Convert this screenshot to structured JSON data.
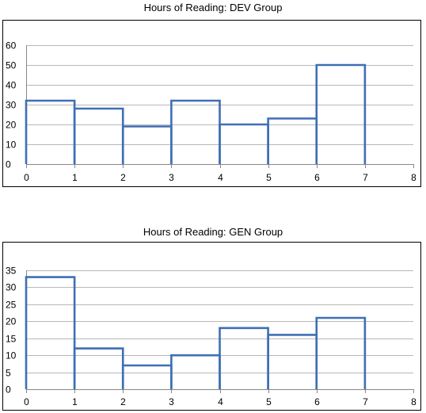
{
  "chart_data": [
    {
      "type": "histogram",
      "title": "Hours of Reading:  DEV Group",
      "xlabel": "",
      "ylabel": "",
      "bin_edges": [
        0,
        1,
        2,
        3,
        4,
        5,
        6,
        7
      ],
      "values": [
        32,
        28,
        19,
        32,
        20,
        23,
        50
      ],
      "xlim": [
        0,
        8
      ],
      "ylim": [
        0,
        60
      ],
      "xticks": [
        0,
        1,
        2,
        3,
        4,
        5,
        6,
        7,
        8
      ],
      "yticks": [
        0,
        10,
        20,
        30,
        40,
        50,
        60
      ],
      "grid": true,
      "color": "#3f6fb5"
    },
    {
      "type": "histogram",
      "title": "Hours of Reading:  GEN Group",
      "xlabel": "",
      "ylabel": "",
      "bin_edges": [
        0,
        1,
        2,
        3,
        4,
        5,
        6,
        7
      ],
      "values": [
        33,
        12,
        7,
        10,
        18,
        16,
        21
      ],
      "xlim": [
        0,
        8
      ],
      "ylim": [
        0,
        35
      ],
      "xticks": [
        0,
        1,
        2,
        3,
        4,
        5,
        6,
        7,
        8
      ],
      "yticks": [
        0,
        5,
        10,
        15,
        20,
        25,
        30,
        35
      ],
      "grid": true,
      "color": "#3f6fb5"
    }
  ]
}
